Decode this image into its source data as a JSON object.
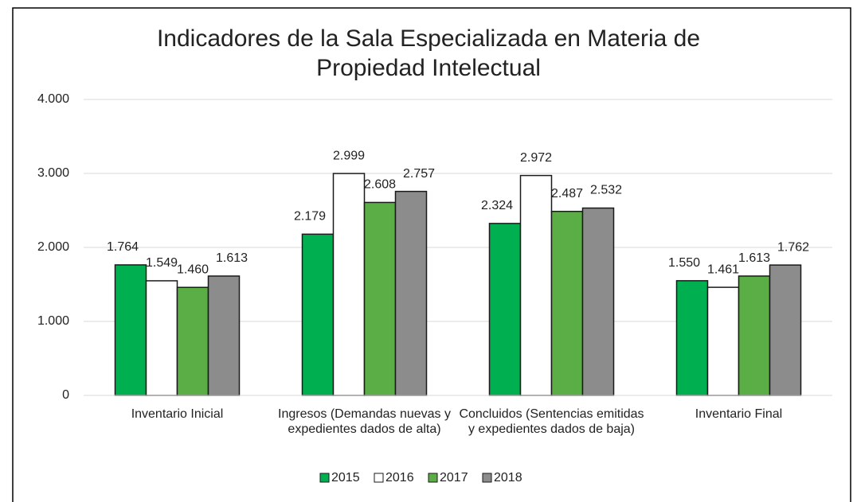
{
  "chart_data": {
    "type": "bar",
    "title": "Indicadores de la Sala Especializada en Materia de Propiedad Intelectual",
    "categories": [
      "Inventario Inicial",
      "Ingresos (Demandas nuevas y expedientes dados de alta)",
      "Concluidos (Sentencias emitidas y expedientes dados de baja)",
      "Inventario Final"
    ],
    "series": [
      {
        "name": "2015",
        "color": "#00b050",
        "values": [
          1764,
          2179,
          2324,
          1550
        ],
        "value_labels": [
          "1.764",
          "2.179",
          "2.324",
          "1.550"
        ]
      },
      {
        "name": "2016",
        "color": "#ffffff",
        "values": [
          1549,
          2999,
          2972,
          1461
        ],
        "value_labels": [
          "1.549",
          "2.999",
          "2.972",
          "1.461"
        ]
      },
      {
        "name": "2017",
        "color": "#5aae45",
        "values": [
          1460,
          2608,
          2487,
          1613
        ],
        "value_labels": [
          "1.460",
          "2.608",
          "2.487",
          "1.613"
        ]
      },
      {
        "name": "2018",
        "color": "#8c8c8c",
        "values": [
          1613,
          2757,
          2532,
          1762
        ],
        "value_labels": [
          "1.613",
          "2.757",
          "2.532",
          "1.762"
        ]
      }
    ],
    "ylim": [
      0,
      4000
    ],
    "yticks": [
      0,
      {
        "value": 1000,
        "label": "1.000"
      },
      {
        "value": 2000,
        "label": "2.000"
      },
      {
        "value": 3000,
        "label": "3.000"
      },
      {
        "value": 4000,
        "label": "4.000"
      }
    ],
    "grid": true,
    "legend": "bottom"
  }
}
